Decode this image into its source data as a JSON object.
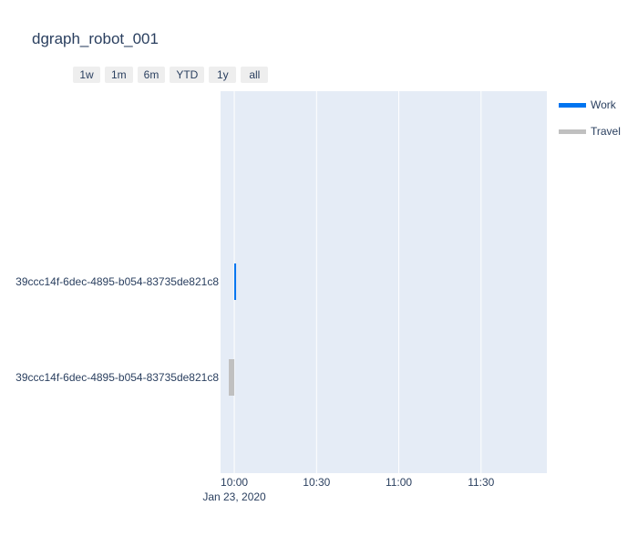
{
  "title": "dgraph_robot_001",
  "range_buttons": [
    "1w",
    "1m",
    "6m",
    "YTD",
    "1y",
    "all"
  ],
  "chart_data": {
    "type": "timeline",
    "title": "dgraph_robot_001",
    "x_axis": {
      "type": "date",
      "range": [
        "2020-01-23 09:55",
        "2020-01-23 11:54"
      ],
      "ticks": [
        "10:00",
        "10:30",
        "11:00",
        "11:30"
      ],
      "tick_values": [
        "2020-01-23 10:00",
        "2020-01-23 10:30",
        "2020-01-23 11:00",
        "2020-01-23 11:30"
      ],
      "date_label": "Jan 23, 2020"
    },
    "y_axis": {
      "categories": [
        "39ccc14f-6dec-4895-b054-83735de821c8",
        "39ccc14f-6dec-4895-b054-83735de821c8"
      ]
    },
    "series": [
      {
        "name": "Work",
        "color": "#0074f0",
        "segments": [
          {
            "row": 0,
            "start": "2020-01-23 10:00",
            "end": "2020-01-23 10:00:30"
          }
        ]
      },
      {
        "name": "Travel",
        "color": "#c0c0c0",
        "segments": [
          {
            "row": 1,
            "start": "2020-01-23 09:58",
            "end": "2020-01-23 10:00"
          }
        ]
      }
    ],
    "grid": true,
    "plot_background": "#e5ecf6",
    "legend_position": "top-right"
  }
}
